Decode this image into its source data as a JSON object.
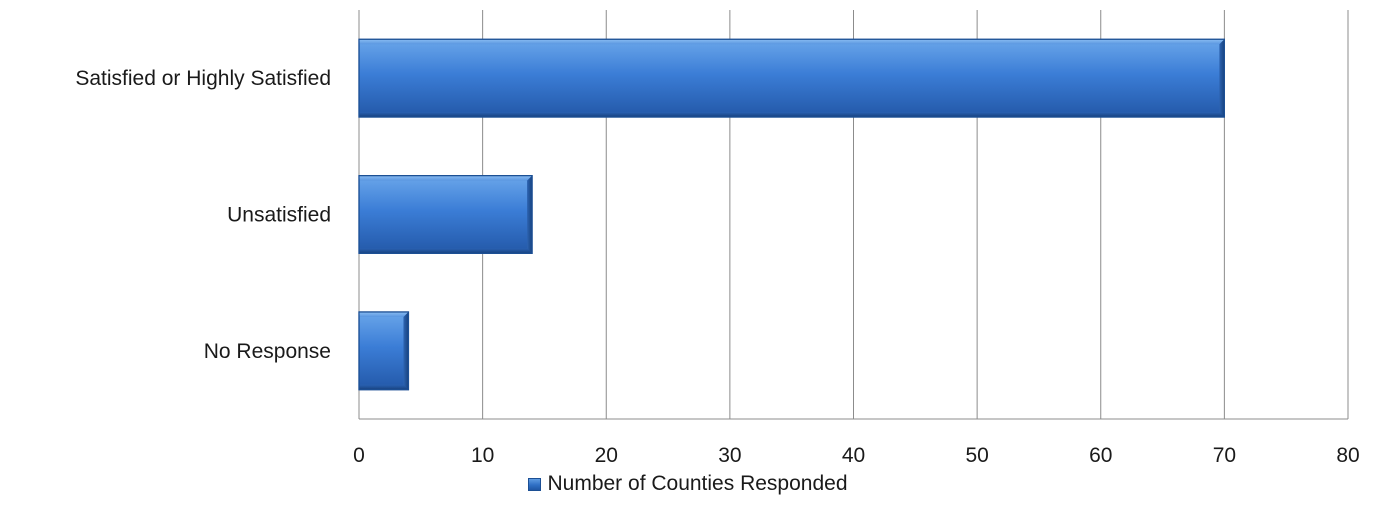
{
  "chart_data": {
    "type": "bar",
    "orientation": "horizontal",
    "categories": [
      "Satisfied or Highly Satisfied",
      "Unsatisfied ",
      "No Response"
    ],
    "series": [
      {
        "name": "Number of Counties Responded",
        "values": [
          70,
          14,
          4
        ]
      }
    ],
    "xlim": [
      0,
      80
    ],
    "xticks": [
      0,
      10,
      20,
      30,
      40,
      50,
      60,
      70,
      80
    ],
    "grid": "vertical",
    "legend_position": "bottom",
    "bar_color": "#3a78cf",
    "bar_edge_color": "#1c4f94"
  }
}
